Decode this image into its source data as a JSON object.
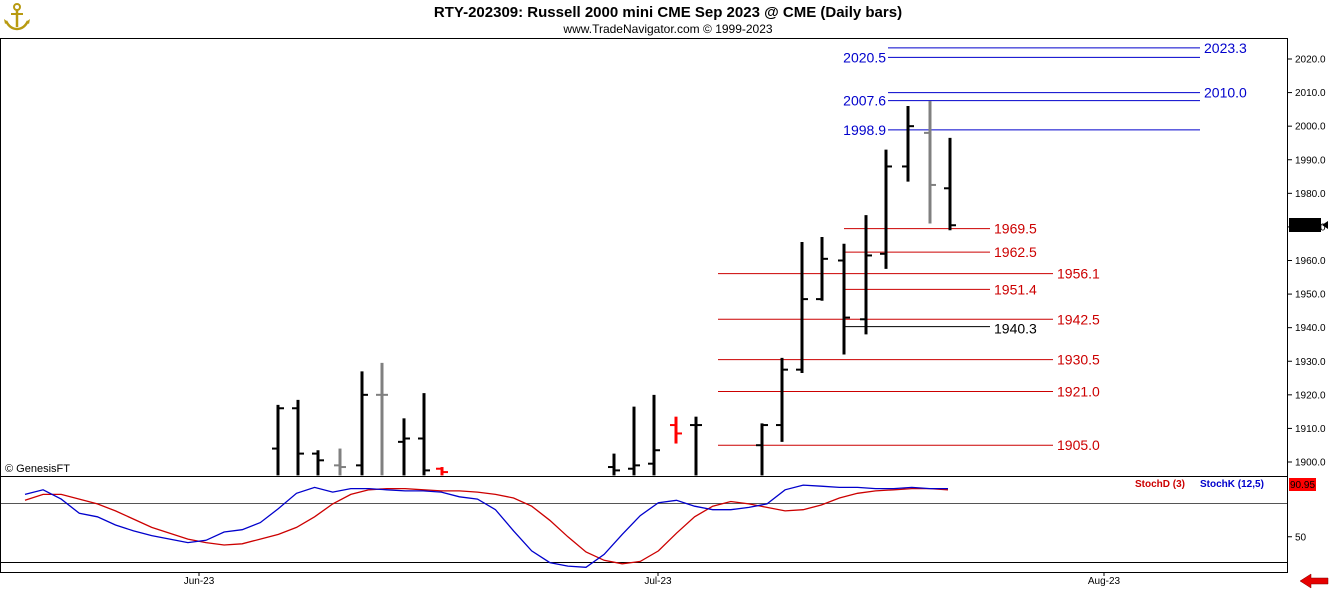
{
  "header": {
    "title": "RTY-202309:  Russell 2000 mini CME Sep 2023 @ CME  (Daily bars)",
    "subtitle": "www.TradeNavigator.com © 1999-2023",
    "copyright": "© GenesisFT",
    "logo_icon": "anchor-icon"
  },
  "colors": {
    "up_bar": "#000000",
    "neutral_bar": "#808080",
    "red_bar": "#ff0000",
    "resistance": "#0000cc",
    "support": "#cc0000",
    "stoch_d": "#cc0000",
    "stoch_k": "#0000cc",
    "price_badge_bg": "#000000",
    "ind_badge_bg": "#ff0000"
  },
  "chart_data": {
    "type": "ohlc",
    "title": "RTY-202309:  Russell 2000 mini CME Sep 2023 @ CME  (Daily bars)",
    "ylim": [
      1896,
      2032
    ],
    "y_ticks": [
      "1900.0",
      "1910.0",
      "1920.0",
      "1930.0",
      "1940.0",
      "1950.0",
      "1960.0",
      "1970.0",
      "1980.0",
      "1990.0",
      "2000.0",
      "2010.0",
      "2020.0"
    ],
    "x_ticks": [
      "Jun-23",
      "Jul-23",
      "Aug-23"
    ],
    "last_price": "1970.5",
    "bars": [
      {
        "o": 1904.0,
        "h": 1917.0,
        "l": 1896.0,
        "c": 1916.0,
        "k": "u"
      },
      {
        "o": 1916.0,
        "h": 1918.5,
        "l": 1896.0,
        "c": 1902.5,
        "k": "u"
      },
      {
        "o": 1902.5,
        "h": 1903.5,
        "l": 1896.0,
        "c": 1900.5,
        "k": "u"
      },
      {
        "o": 1899.0,
        "h": 1904.0,
        "l": 1896.0,
        "c": 1898.5,
        "k": "n"
      },
      {
        "o": 1899.0,
        "h": 1927.0,
        "l": 1896.0,
        "c": 1920.0,
        "k": "u"
      },
      {
        "o": 1920.0,
        "h": 1929.5,
        "l": 1896.0,
        "c": 1920.0,
        "k": "n"
      },
      {
        "o": 1906.0,
        "h": 1913.0,
        "l": 1896.0,
        "c": 1907.0,
        "k": "u"
      },
      {
        "o": 1907.0,
        "h": 1920.5,
        "l": 1896.0,
        "c": 1897.5,
        "k": "u"
      },
      {
        "o": 1898.0,
        "h": 1898.5,
        "l": 1896.0,
        "c": 1897.0,
        "k": "r"
      },
      {
        "o": 1898.5,
        "h": 1902.5,
        "l": 1896.0,
        "c": 1897.5,
        "k": "u"
      },
      {
        "o": 1898.0,
        "h": 1916.5,
        "l": 1896.0,
        "c": 1899.0,
        "k": "u"
      },
      {
        "o": 1899.5,
        "h": 1920.0,
        "l": 1896.0,
        "c": 1903.5,
        "k": "u"
      },
      {
        "o": 1911.0,
        "h": 1913.5,
        "l": 1905.5,
        "c": 1908.5,
        "k": "r"
      },
      {
        "o": 1911.0,
        "h": 1913.5,
        "l": 1896.0,
        "c": 1911.0,
        "k": "u"
      },
      {
        "o": 1905.0,
        "h": 1911.5,
        "l": 1896.0,
        "c": 1911.0,
        "k": "u"
      },
      {
        "o": 1911.0,
        "h": 1931.0,
        "l": 1906.0,
        "c": 1927.5,
        "k": "u"
      },
      {
        "o": 1927.5,
        "h": 1965.5,
        "l": 1926.5,
        "c": 1948.5,
        "k": "u"
      },
      {
        "o": 1948.5,
        "h": 1967.0,
        "l": 1948.0,
        "c": 1960.5,
        "k": "u"
      },
      {
        "o": 1960.0,
        "h": 1965.0,
        "l": 1932.0,
        "c": 1943.0,
        "k": "u"
      },
      {
        "o": 1942.5,
        "h": 1973.5,
        "l": 1938.0,
        "c": 1961.5,
        "k": "u"
      },
      {
        "o": 1962.0,
        "h": 1993.0,
        "l": 1957.5,
        "c": 1988.0,
        "k": "u"
      },
      {
        "o": 1988.0,
        "h": 2006.0,
        "l": 1983.5,
        "c": 2000.0,
        "k": "u"
      },
      {
        "o": 1998.0,
        "h": 2007.5,
        "l": 1971.0,
        "c": 1982.5,
        "k": "n"
      },
      {
        "o": 1981.5,
        "h": 1996.5,
        "l": 1969.0,
        "c": 1970.5,
        "k": "u"
      }
    ],
    "levels": [
      {
        "value": 2023.3,
        "label": "2023.3",
        "role": "resistance",
        "side": "right"
      },
      {
        "value": 2020.5,
        "label": "2020.5",
        "role": "resistance",
        "side": "left"
      },
      {
        "value": 2010.0,
        "label": "2010.0",
        "role": "resistance",
        "side": "right"
      },
      {
        "value": 2007.6,
        "label": "2007.6",
        "role": "resistance",
        "side": "left"
      },
      {
        "value": 1998.9,
        "label": "1998.9",
        "role": "resistance",
        "side": "left"
      },
      {
        "value": 1969.5,
        "label": "1969.5",
        "role": "support",
        "side": "mid"
      },
      {
        "value": 1962.5,
        "label": "1962.5",
        "role": "support",
        "side": "mid"
      },
      {
        "value": 1956.1,
        "label": "1956.1",
        "role": "support",
        "side": "right"
      },
      {
        "value": 1951.4,
        "label": "1951.4",
        "role": "support",
        "side": "mid"
      },
      {
        "value": 1942.5,
        "label": "1942.5",
        "role": "support",
        "side": "right"
      },
      {
        "value": 1940.3,
        "label": "1940.3",
        "role": "neutral",
        "side": "mid"
      },
      {
        "value": 1930.5,
        "label": "1930.5",
        "role": "support",
        "side": "right"
      },
      {
        "value": 1921.0,
        "label": "1921.0",
        "role": "support",
        "side": "right"
      },
      {
        "value": 1905.0,
        "label": "1905.0",
        "role": "support",
        "side": "right"
      }
    ],
    "stochastic": {
      "ylim": [
        20,
        100
      ],
      "y_ticks": [
        "50"
      ],
      "ref_line": 80,
      "last_value": "90.95",
      "series": [
        {
          "name": "StochD (3)",
          "values": [
            81,
            86,
            86,
            82,
            78,
            72,
            65,
            58,
            53,
            48,
            45,
            43,
            44,
            48,
            52,
            58,
            67,
            78,
            86,
            90,
            91,
            91,
            90,
            89,
            89,
            88,
            86,
            83,
            76,
            64,
            50,
            37,
            30,
            27,
            29,
            38,
            53,
            67,
            76,
            80,
            78,
            75,
            72,
            73,
            77,
            83,
            87,
            89,
            90,
            91,
            91,
            90
          ]
        },
        {
          "name": "StochK (12,5)",
          "values": [
            86,
            90,
            82,
            70,
            67,
            60,
            55,
            51,
            48,
            45,
            47,
            54,
            56,
            62,
            74,
            87,
            92,
            88,
            91,
            91,
            90,
            89,
            89,
            88,
            84,
            82,
            73,
            55,
            38,
            28,
            25,
            24,
            35,
            52,
            68,
            79,
            81,
            76,
            73,
            73,
            75,
            78,
            90,
            94,
            93,
            92,
            92,
            91,
            91,
            92,
            91,
            91
          ]
        }
      ]
    }
  }
}
